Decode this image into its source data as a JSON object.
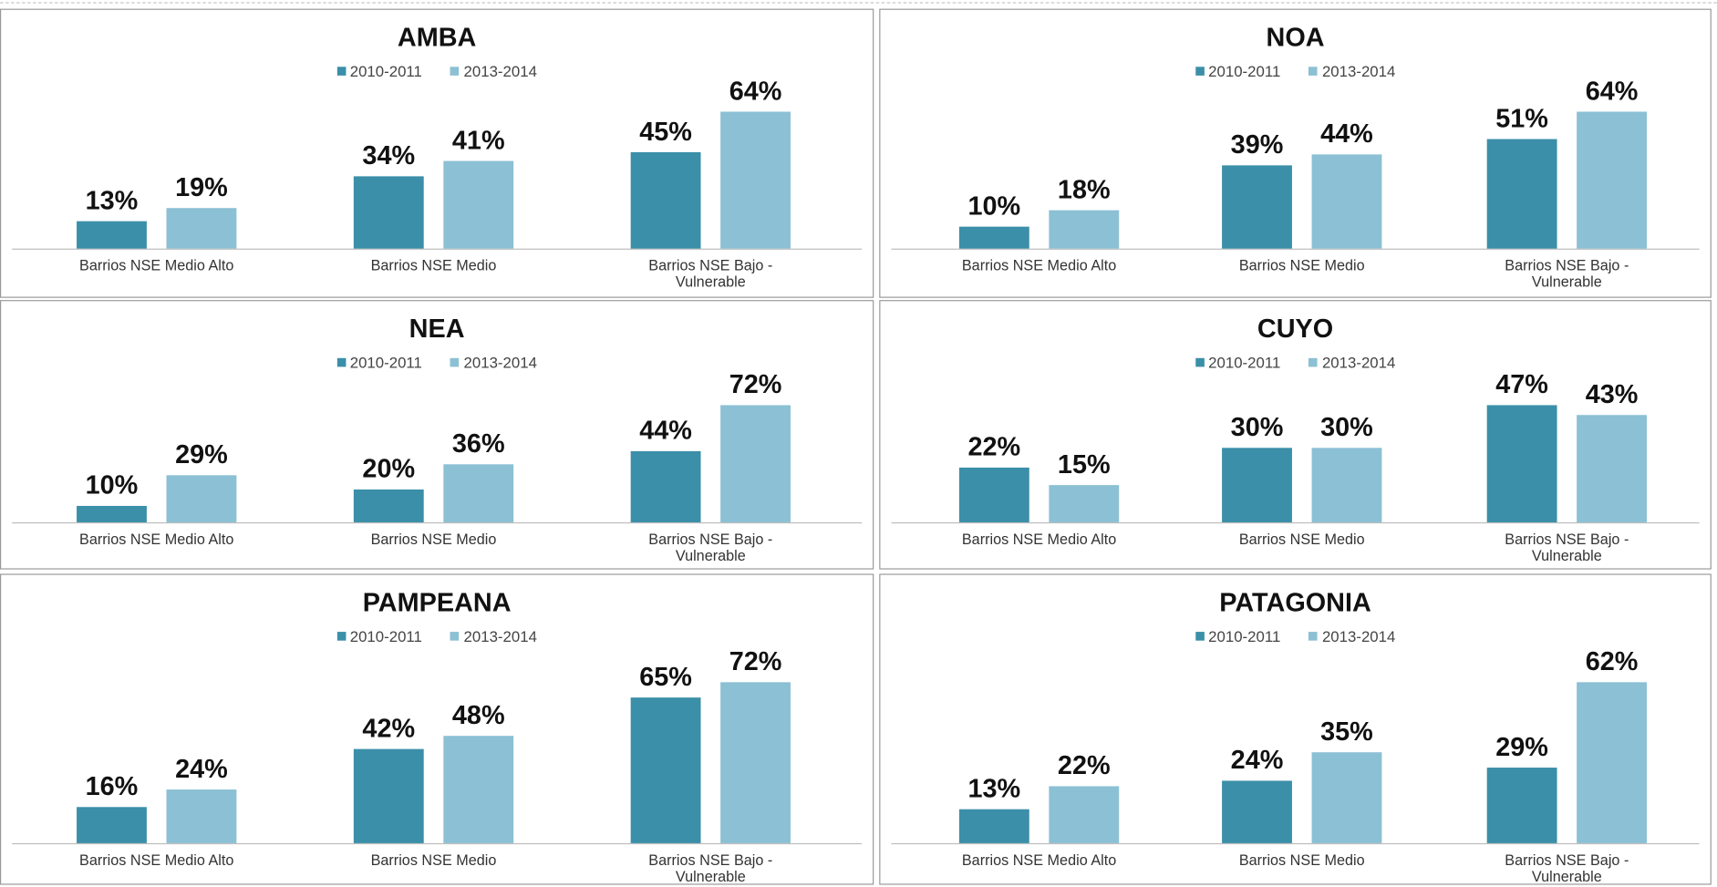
{
  "chart_data": [
    {
      "type": "bar",
      "title": "AMBA",
      "categories": [
        "Barrios NSE Medio Alto",
        "Barrios NSE Medio",
        "Barrios NSE Bajo - Vulnerable"
      ],
      "series": [
        {
          "name": "2010-2011",
          "color": "#3b8fa8",
          "values": [
            13,
            34,
            45
          ],
          "value_labels": [
            "13%",
            "34%",
            "45%"
          ]
        },
        {
          "name": "2013-2014",
          "color": "#8cc0d4",
          "values": [
            19,
            41,
            64
          ],
          "value_labels": [
            "19%",
            "41%",
            "64%"
          ]
        }
      ]
    },
    {
      "type": "bar",
      "title": "NOA",
      "categories": [
        "Barrios NSE Medio Alto",
        "Barrios NSE Medio",
        "Barrios NSE Bajo - Vulnerable"
      ],
      "series": [
        {
          "name": "2010-2011",
          "color": "#3b8fa8",
          "values": [
            10,
            39,
            51
          ],
          "value_labels": [
            "10%",
            "39%",
            "51%"
          ]
        },
        {
          "name": "2013-2014",
          "color": "#8cc0d4",
          "values": [
            18,
            44,
            64
          ],
          "value_labels": [
            "18%",
            "44%",
            "64%"
          ]
        }
      ]
    },
    {
      "type": "bar",
      "title": "NEA",
      "categories": [
        "Barrios NSE Medio Alto",
        "Barrios NSE Medio",
        "Barrios NSE Bajo - Vulnerable"
      ],
      "series": [
        {
          "name": "2010-2011",
          "color": "#3b8fa8",
          "values": [
            10,
            20,
            44
          ],
          "value_labels": [
            "10%",
            "20%",
            "44%"
          ]
        },
        {
          "name": "2013-2014",
          "color": "#8cc0d4",
          "values": [
            29,
            36,
            72
          ],
          "value_labels": [
            "29%",
            "36%",
            "72%"
          ]
        }
      ]
    },
    {
      "type": "bar",
      "title": "CUYO",
      "categories": [
        "Barrios NSE Medio Alto",
        "Barrios NSE Medio",
        "Barrios NSE Bajo - Vulnerable"
      ],
      "series": [
        {
          "name": "2010-2011",
          "color": "#3b8fa8",
          "values": [
            22,
            30,
            47
          ],
          "value_labels": [
            "22%",
            "30%",
            "47%"
          ]
        },
        {
          "name": "2013-2014",
          "color": "#8cc0d4",
          "values": [
            15,
            30,
            43
          ],
          "value_labels": [
            "15%",
            "30%",
            "43%"
          ]
        }
      ]
    },
    {
      "type": "bar",
      "title": "PAMPEANA",
      "categories": [
        "Barrios NSE Medio Alto",
        "Barrios NSE Medio",
        "Barrios NSE Bajo - Vulnerable"
      ],
      "series": [
        {
          "name": "2010-2011",
          "color": "#3b8fa8",
          "values": [
            16,
            42,
            65
          ],
          "value_labels": [
            "16%",
            "42%",
            "65%"
          ]
        },
        {
          "name": "2013-2014",
          "color": "#8cc0d4",
          "values": [
            24,
            48,
            72
          ],
          "value_labels": [
            "24%",
            "48%",
            "72%"
          ]
        }
      ]
    },
    {
      "type": "bar",
      "title": "PATAGONIA",
      "categories": [
        "Barrios NSE Medio Alto",
        "Barrios NSE Medio",
        "Barrios NSE Bajo - Vulnerable"
      ],
      "series": [
        {
          "name": "2010-2011",
          "color": "#3b8fa8",
          "values": [
            13,
            24,
            29
          ],
          "value_labels": [
            "13%",
            "24%",
            "29%"
          ]
        },
        {
          "name": "2013-2014",
          "color": "#8cc0d4",
          "values": [
            22,
            35,
            62
          ],
          "value_labels": [
            "22%",
            "35%",
            "62%"
          ]
        }
      ]
    }
  ]
}
